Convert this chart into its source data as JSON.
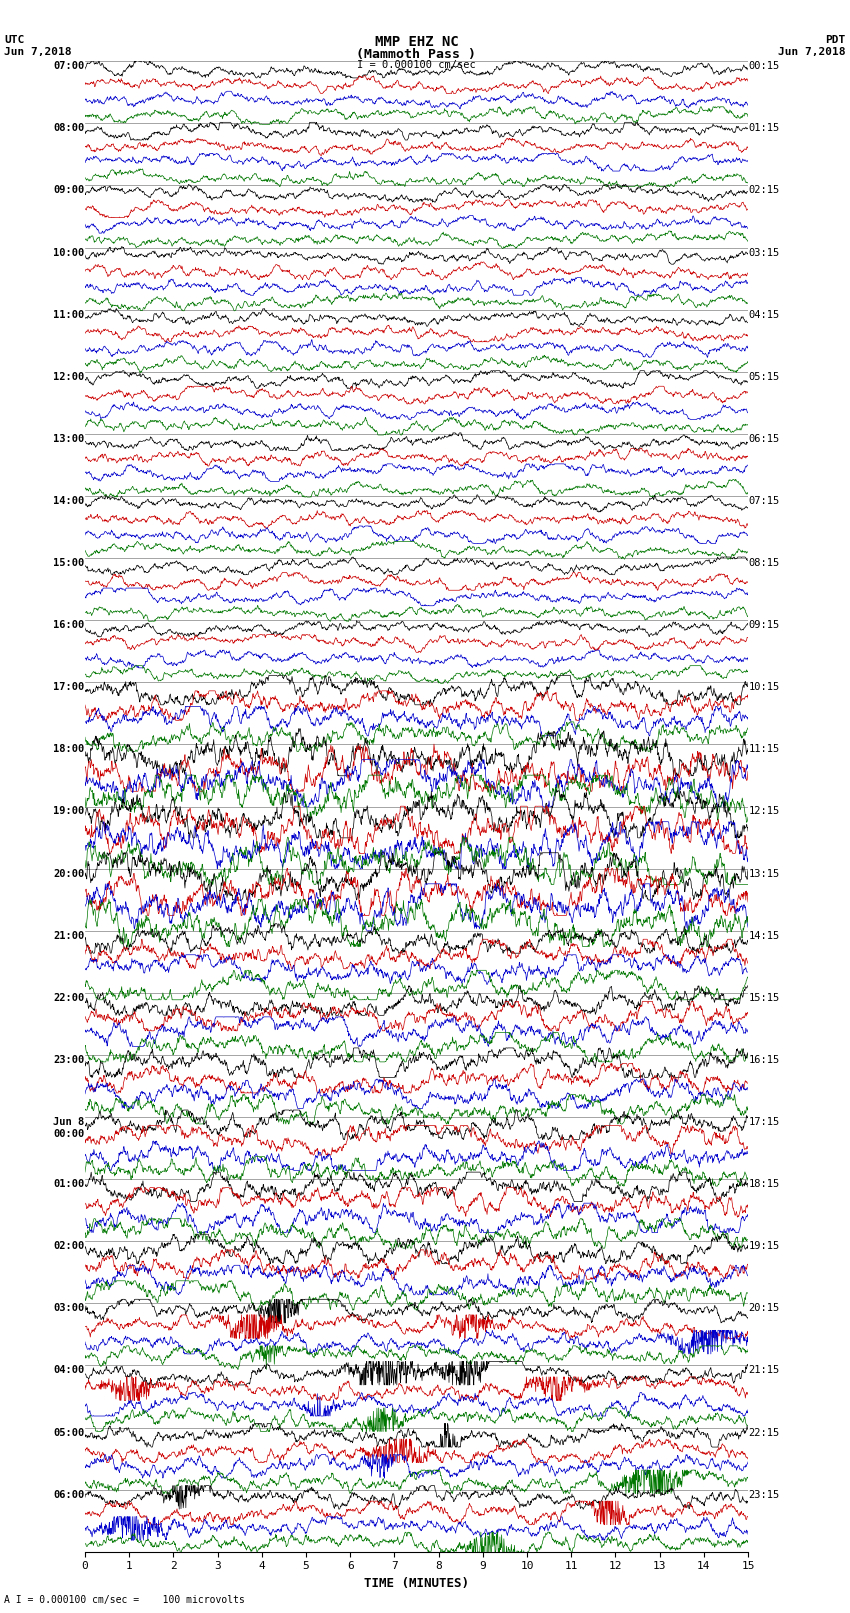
{
  "title_line1": "MMP EHZ NC",
  "title_line2": "(Mammoth Pass )",
  "scale_label": "I = 0.000100 cm/sec",
  "footer_label": "A I = 0.000100 cm/sec =    100 microvolts",
  "utc_label": "UTC",
  "utc_date": "Jun 7,2018",
  "pdt_label": "PDT",
  "pdt_date": "Jun 7,2018",
  "xlabel": "TIME (MINUTES)",
  "left_times": [
    "07:00",
    "08:00",
    "09:00",
    "10:00",
    "11:00",
    "12:00",
    "13:00",
    "14:00",
    "15:00",
    "16:00",
    "17:00",
    "18:00",
    "19:00",
    "20:00",
    "21:00",
    "22:00",
    "23:00",
    "Jun 8\n00:00",
    "01:00",
    "02:00",
    "03:00",
    "04:00",
    "05:00",
    "06:00"
  ],
  "right_times": [
    "00:15",
    "01:15",
    "02:15",
    "03:15",
    "04:15",
    "05:15",
    "06:15",
    "07:15",
    "08:15",
    "09:15",
    "10:15",
    "11:15",
    "12:15",
    "13:15",
    "14:15",
    "15:15",
    "16:15",
    "17:15",
    "18:15",
    "19:15",
    "20:15",
    "21:15",
    "22:15",
    "23:15"
  ],
  "n_hour_blocks": 24,
  "traces_per_block": 4,
  "trace_colors": [
    "#000000",
    "#cc0000",
    "#0000cc",
    "#007700"
  ],
  "bg_color": "#ffffff",
  "trace_amplitude": 0.38,
  "noise_base": 0.06,
  "xmin": 0,
  "xmax": 15,
  "title_fontsize": 10,
  "label_fontsize": 8,
  "tick_fontsize": 8,
  "high_activity_blocks": [
    10,
    11,
    12,
    13,
    14,
    15,
    16,
    17,
    18,
    19
  ],
  "very_high_blocks": [
    11,
    12,
    13
  ],
  "event_blocks": [
    16,
    17,
    18,
    19,
    20,
    21,
    22,
    23
  ]
}
